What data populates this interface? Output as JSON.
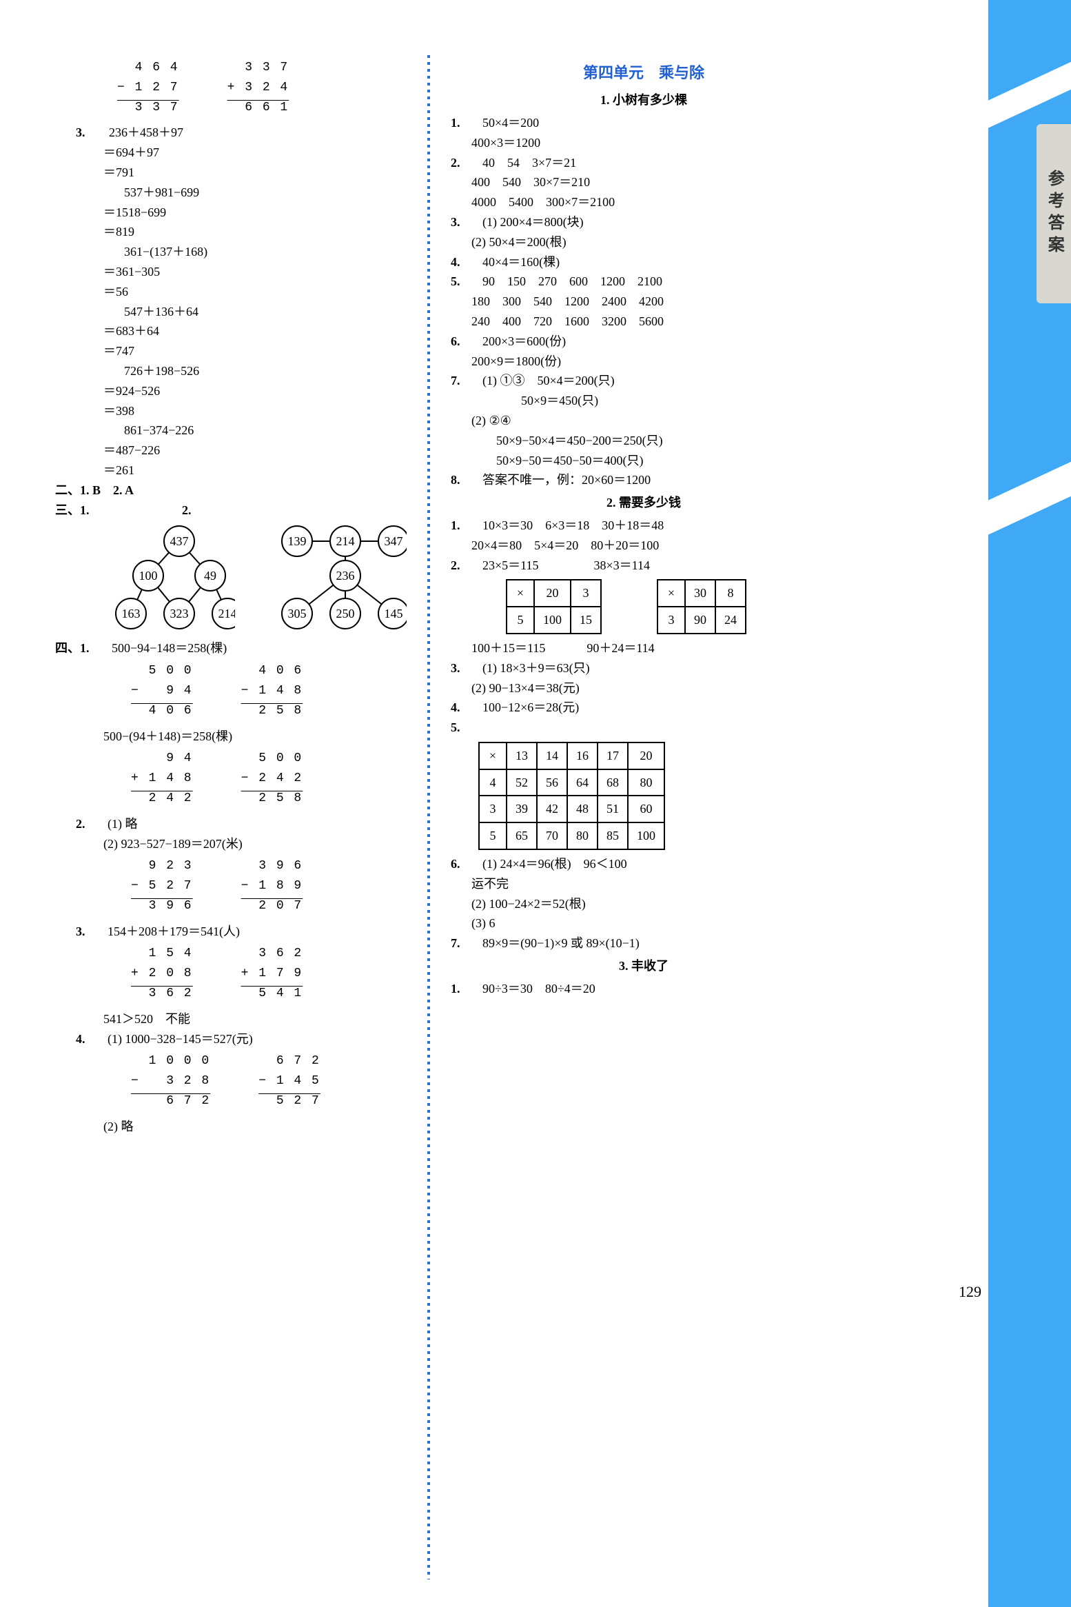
{
  "side_tab": "参考答案",
  "page_number": "129",
  "left": {
    "vc1": {
      "a": "  4 6 4",
      "b": "− 1 2 7",
      "c": "  3 3 7"
    },
    "vc2": {
      "a": "  3 3 7",
      "b": "+ 3 2 4",
      "c": "  6 6 1"
    },
    "q3_label": "3.",
    "s3": [
      "236＋458＋97",
      "＝694＋97",
      "＝791",
      "537＋981−699",
      "＝1518−699",
      "＝819",
      "361−(137＋168)",
      "＝361−305",
      "＝56",
      "547＋136＋64",
      "＝683＋64",
      "＝747",
      "726＋198−526",
      "＝924−526",
      "＝398",
      "861−374−226",
      "＝487−226",
      "＝261"
    ],
    "two_label": "二、",
    "two_1": "1.  B",
    "two_2": "2.  A",
    "three_label": "三、",
    "three_1": "1.",
    "three_2": "2.",
    "tree1": {
      "n": [
        437,
        100,
        49,
        163,
        323,
        214
      ]
    },
    "tree2": {
      "n": [
        139,
        214,
        347,
        236,
        305,
        250,
        145
      ]
    },
    "four_label": "四、",
    "four_1": "1.",
    "four_1_text": "500−94−148＝258(棵)",
    "vc3": {
      "a": "  5 0 0",
      "b": "−   9 4",
      "c": "  4 0 6"
    },
    "vc4": {
      "a": "  4 0 6",
      "b": "− 1 4 8",
      "c": "  2 5 8"
    },
    "four_1_text2": "500−(94＋148)＝258(棵)",
    "vc5": {
      "a": "    9 4",
      "b": "+ 1 4 8",
      "c": "  2 4 2"
    },
    "vc6": {
      "a": "  5 0 0",
      "b": "− 2 4 2",
      "c": "  2 5 8"
    },
    "four_2": "2.",
    "four_2_1": "(1) 略",
    "four_2_2": "(2) 923−527−189＝207(米)",
    "vc7": {
      "a": "  9 2 3",
      "b": "− 5 2 7",
      "c": "  3 9 6"
    },
    "vc8": {
      "a": "  3 9 6",
      "b": "− 1 8 9",
      "c": "  2 0 7"
    },
    "four_3": "3.",
    "four_3_text": "154＋208＋179＝541(人)",
    "vc9": {
      "a": "  1 5 4",
      "b": "+ 2 0 8",
      "c": "  3 6 2"
    },
    "vc10": {
      "a": "  3 6 2",
      "b": "+ 1 7 9",
      "c": "  5 4 1"
    },
    "four_3_text2": "541＞520　不能",
    "four_4": "4.",
    "four_4_1": "(1) 1000−328−145＝527(元)",
    "vc11": {
      "a": "  1 0 0 0",
      "b": "−   3 2 8",
      "c": "    6 7 2"
    },
    "vc12": {
      "a": "  6 7 2",
      "b": "− 1 4 5",
      "c": "  5 2 7"
    },
    "four_4_2": "(2) 略"
  },
  "right": {
    "unit_title": "第四单元　乘与除",
    "sub1": "1. 小树有多少棵",
    "s1": [
      {
        "n": "1.",
        "t": "50×4＝200"
      },
      {
        "n": "",
        "t": "400×3＝1200"
      },
      {
        "n": "2.",
        "t": "40　54　3×7＝21"
      },
      {
        "n": "",
        "t": "400　540　30×7＝210"
      },
      {
        "n": "",
        "t": "4000　5400　300×7＝2100"
      },
      {
        "n": "3.",
        "t": "(1) 200×4＝800(块)"
      },
      {
        "n": "",
        "t": "(2) 50×4＝200(根)"
      },
      {
        "n": "4.",
        "t": "40×4＝160(棵)"
      },
      {
        "n": "5.",
        "t": "90　150　270　600　1200　2100"
      },
      {
        "n": "",
        "t": "180　300　540　1200　2400　4200"
      },
      {
        "n": "",
        "t": "240　400　720　1600　3200　5600"
      },
      {
        "n": "6.",
        "t": "200×3＝600(份)"
      },
      {
        "n": "",
        "t": "200×9＝1800(份)"
      },
      {
        "n": "7.",
        "t": "(1) ①③　50×4＝200(只)"
      },
      {
        "n": "",
        "t": "　　　　50×9＝450(只)"
      },
      {
        "n": "",
        "t": "(2) ②④"
      },
      {
        "n": "",
        "t": "　　50×9−50×4＝450−200＝250(只)"
      },
      {
        "n": "",
        "t": "　　50×9−50＝450−50＝400(只)"
      },
      {
        "n": "8.",
        "t": "答案不唯一，例：20×60＝1200"
      }
    ],
    "sub2": "2. 需要多少钱",
    "s2_1a": "1.",
    "s2_1": "10×3＝30　6×3＝18　30＋18＝48",
    "s2_1b": "20×4＝80　5×4＝20　80＋20＝100",
    "s2_2a": "2.",
    "s2_2": "23×5＝115",
    "s2_2b": "38×3＝114",
    "tblA": [
      [
        "×",
        "20",
        "3"
      ],
      [
        "5",
        "100",
        "15"
      ]
    ],
    "tblB": [
      [
        "×",
        "30",
        "8"
      ],
      [
        "3",
        "90",
        "24"
      ]
    ],
    "s2_2c": "100＋15＝115",
    "s2_2d": "90＋24＝114",
    "s2_3a": "3.",
    "s2_3": "(1) 18×3＋9＝63(只)",
    "s2_3b": "(2) 90−13×4＝38(元)",
    "s2_4a": "4.",
    "s2_4": "100−12×6＝28(元)",
    "s2_5a": "5.",
    "tblC": [
      [
        "×",
        "13",
        "14",
        "16",
        "17",
        "20"
      ],
      [
        "4",
        "52",
        "56",
        "64",
        "68",
        "80"
      ],
      [
        "3",
        "39",
        "42",
        "48",
        "51",
        "60"
      ],
      [
        "5",
        "65",
        "70",
        "80",
        "85",
        "100"
      ]
    ],
    "s2_6a": "6.",
    "s2_6": "(1) 24×4＝96(根)　96＜100",
    "s2_6b": "运不完",
    "s2_6c": "(2) 100−24×2＝52(根)",
    "s2_6d": "(3) 6",
    "s2_7a": "7.",
    "s2_7": "89×9＝(90−1)×9 或 89×(10−1)",
    "sub3": "3. 丰收了",
    "s3_1a": "1.",
    "s3_1": "90÷3＝30　80÷4＝20"
  }
}
